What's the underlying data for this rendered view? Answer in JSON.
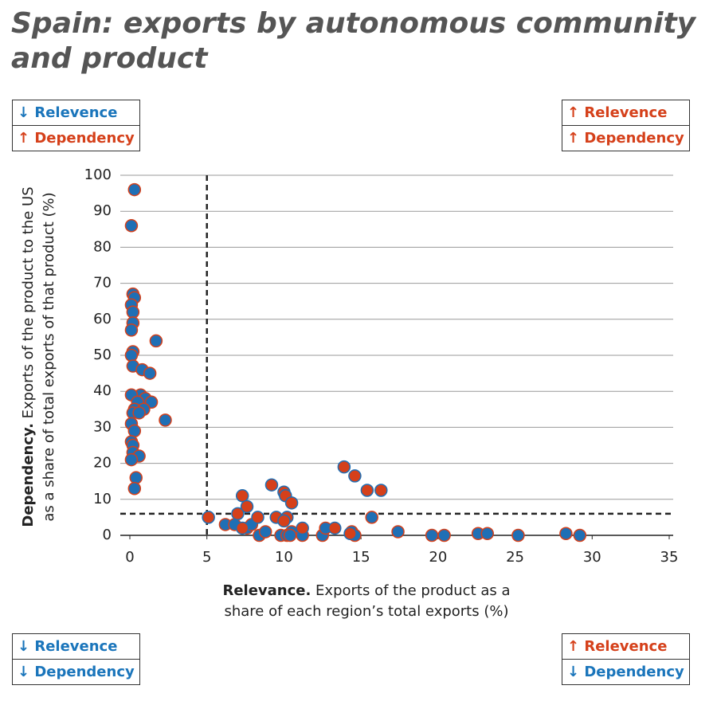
{
  "chart_data": {
    "type": "scatter",
    "title": "Spain: exports by autonomous community and product",
    "xlabel": {
      "bold": "Relevance.",
      "lines": [
        " Exports of the product as a",
        "share of each region’s total exports (%)"
      ]
    },
    "ylabel": {
      "bold": "Dependency.",
      "lines": [
        " Exports of the product to the US",
        "as a share of total exports of that product (%)"
      ]
    },
    "xlim": [
      0,
      35
    ],
    "ylim": [
      0,
      100
    ],
    "xticks": [
      0,
      5,
      10,
      15,
      20,
      25,
      30,
      35
    ],
    "yticks": [
      0,
      10,
      20,
      30,
      40,
      50,
      60,
      70,
      80,
      90,
      100
    ],
    "grid": "y",
    "xline": 5,
    "yline": 6,
    "series": [
      {
        "color": "#1f6fb5",
        "edgecolor": "#d5401a",
        "x": [
          0.3,
          0.1,
          0.2,
          0.3,
          0.1,
          0.2,
          0.2,
          0.1,
          1.7,
          0.2,
          0.1,
          0.2,
          0.8,
          1.3,
          0.7,
          0.1,
          1.0,
          1.4,
          0.5,
          0.3,
          0.9,
          0.2,
          0.6,
          2.3,
          0.1,
          0.3,
          0.1,
          0.2,
          0.2,
          0.6,
          0.1,
          0.4,
          0.3,
          6.2,
          6.8,
          7.6,
          7.9,
          8.4,
          8.8,
          9.8,
          10.2,
          10.5,
          10.4,
          11.2,
          12.5,
          12.7,
          14.4,
          14.6,
          15.7,
          17.4,
          19.6,
          20.4,
          22.6,
          23.2,
          25.2,
          28.3,
          29.2
        ],
        "values": [
          96,
          86,
          67,
          66,
          64,
          62,
          59,
          57,
          54,
          51,
          50,
          47,
          46,
          45,
          39,
          39,
          38,
          37,
          37,
          35,
          35,
          34,
          34,
          32,
          31,
          29,
          26,
          25,
          23,
          22,
          21,
          16,
          13,
          3,
          3,
          2,
          3,
          0,
          1,
          0,
          0,
          1,
          0,
          0,
          0,
          2,
          1,
          0,
          5,
          1,
          0,
          0,
          0.5,
          0.5,
          0,
          0.5,
          0
        ]
      },
      {
        "color": "#d5401a",
        "edgecolor": "#1f6fb5",
        "x": [
          5.1,
          7.3,
          7.6,
          7.0,
          8.3,
          9.2,
          10.0,
          10.1,
          10.5,
          9.5,
          10.2,
          10.0,
          11.2,
          13.3,
          13.9,
          14.6,
          15.4,
          16.3,
          14.3,
          7.3
        ],
        "values": [
          5,
          11,
          8,
          6,
          5,
          14,
          12,
          11,
          9,
          5,
          5,
          4,
          2,
          2,
          19,
          16.5,
          12.5,
          12.5,
          0.5,
          2
        ]
      }
    ],
    "annotations": [
      {
        "corner": "top-left",
        "items": [
          {
            "text": "↓ Relevence",
            "color": "#1a75bb"
          },
          {
            "text": "↑ Dependency",
            "color": "#d5401a"
          }
        ]
      },
      {
        "corner": "top-right",
        "items": [
          {
            "text": "↑ Relevence",
            "color": "#d5401a"
          },
          {
            "text": "↑ Dependency",
            "color": "#d5401a"
          }
        ]
      },
      {
        "corner": "bottom-left",
        "items": [
          {
            "text": "↓ Relevence",
            "color": "#1a75bb"
          },
          {
            "text": "↓ Dependency",
            "color": "#1a75bb"
          }
        ]
      },
      {
        "corner": "bottom-right",
        "items": [
          {
            "text": "↑ Relevence",
            "color": "#d5401a"
          },
          {
            "text": "↓ Dependency",
            "color": "#1a75bb"
          }
        ]
      }
    ]
  }
}
